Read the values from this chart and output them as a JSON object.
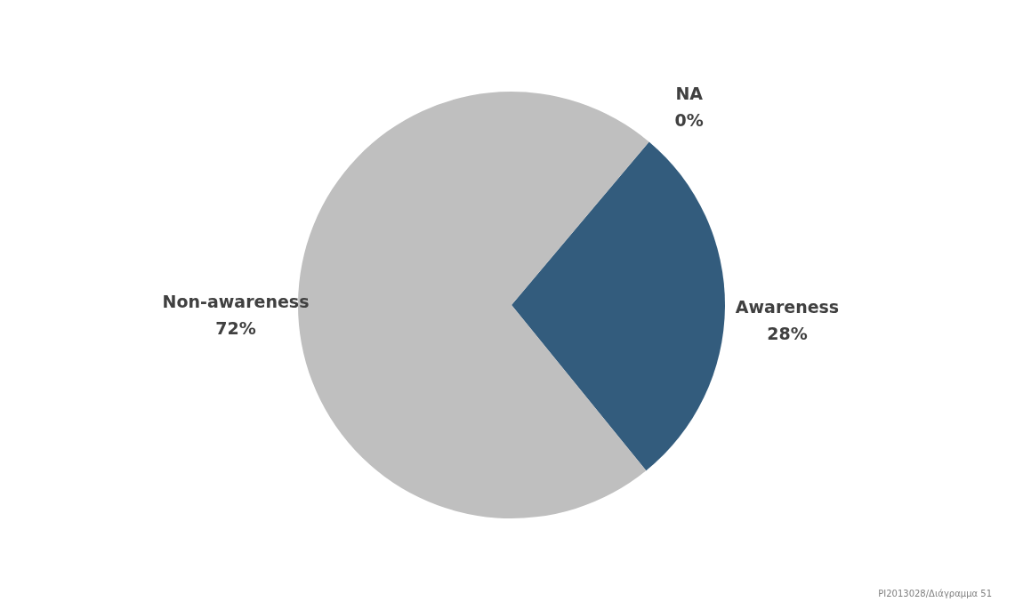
{
  "chart_data": {
    "type": "pie",
    "categories": [
      "Awareness",
      "Non-awareness",
      "NA"
    ],
    "values": [
      28,
      72,
      0
    ],
    "colors": [
      "#335c7d",
      "#bfbfbf",
      "#bfbfbf"
    ],
    "value_labels": [
      "28%",
      "72%",
      "0%"
    ],
    "legend": false,
    "annotations": [
      "PI2013028/Διάγραμμα 51"
    ]
  }
}
